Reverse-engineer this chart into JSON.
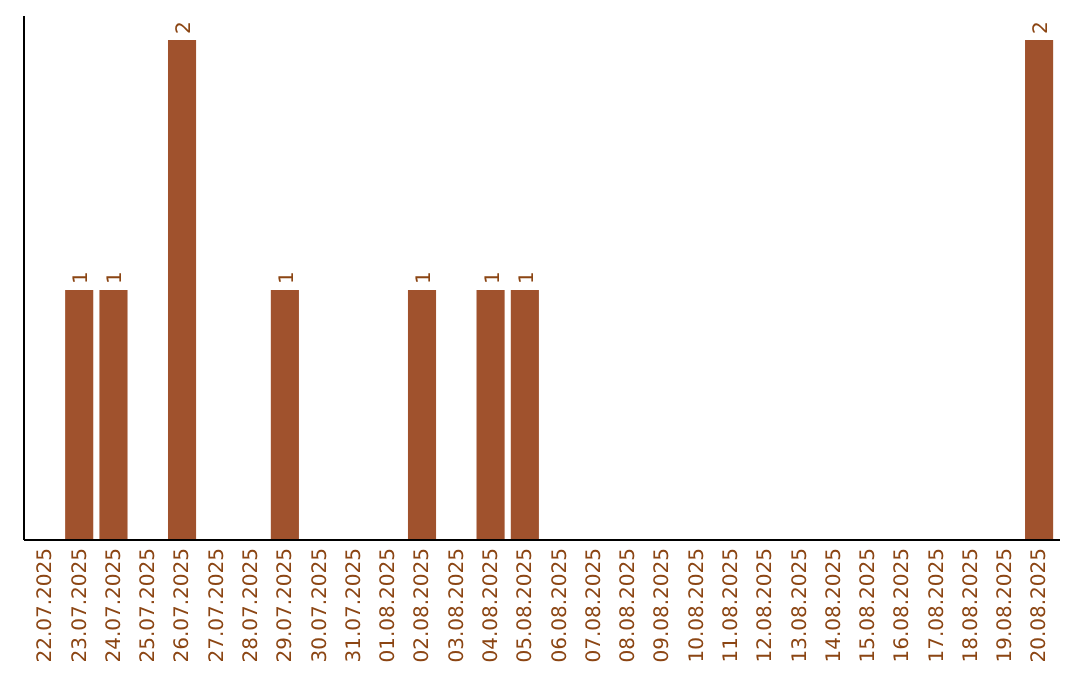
{
  "chart_data": {
    "type": "bar",
    "categories": [
      "22.07.2025",
      "23.07.2025",
      "24.07.2025",
      "25.07.2025",
      "26.07.2025",
      "27.07.2025",
      "28.07.2025",
      "29.07.2025",
      "30.07.2025",
      "31.07.2025",
      "01.08.2025",
      "02.08.2025",
      "03.08.2025",
      "04.08.2025",
      "05.08.2025",
      "06.08.2025",
      "07.08.2025",
      "08.08.2025",
      "09.08.2025",
      "10.08.2025",
      "11.08.2025",
      "12.08.2025",
      "13.08.2025",
      "14.08.2025",
      "15.08.2025",
      "16.08.2025",
      "17.08.2025",
      "18.08.2025",
      "19.08.2025",
      "20.08.2025"
    ],
    "values": [
      0,
      1,
      1,
      0,
      2,
      0,
      0,
      1,
      0,
      0,
      0,
      1,
      0,
      1,
      1,
      0,
      0,
      0,
      0,
      0,
      0,
      0,
      0,
      0,
      0,
      0,
      0,
      0,
      0,
      2
    ],
    "value_labels": [
      null,
      "1",
      "1",
      null,
      "2",
      null,
      null,
      "1",
      null,
      null,
      null,
      "1",
      null,
      "1",
      "1",
      null,
      null,
      null,
      null,
      null,
      null,
      null,
      null,
      null,
      null,
      null,
      null,
      null,
      null,
      "2"
    ],
    "color": "#a0522d"
  }
}
